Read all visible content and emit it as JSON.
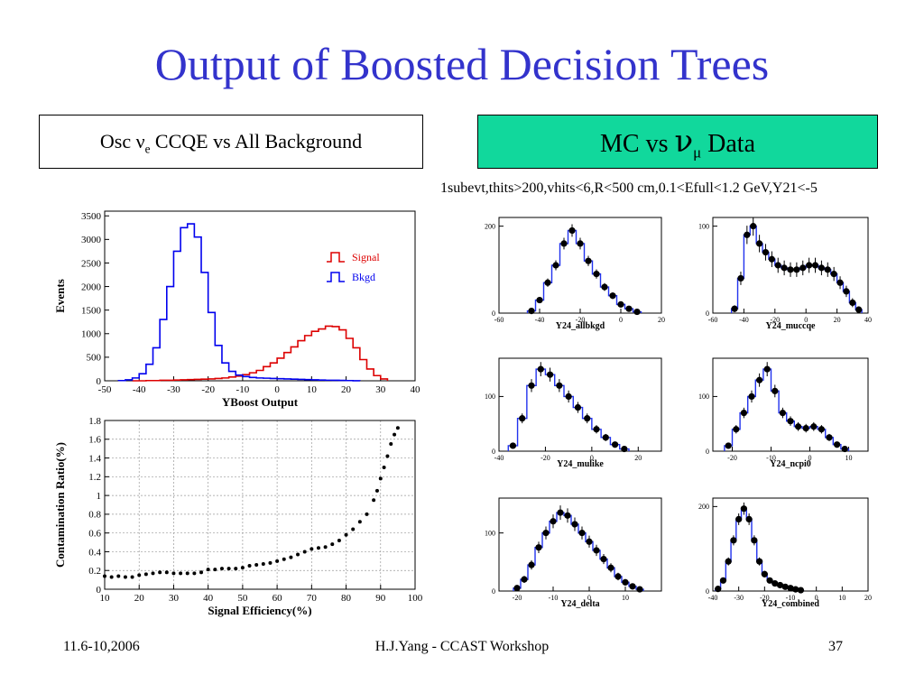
{
  "title": "Output of Boosted Decision Trees",
  "left_box": {
    "prefix": "Osc ν",
    "sub": "e",
    "suffix": " CCQE vs All Background"
  },
  "right_box": {
    "prefix": "MC vs ",
    "nu": "ν",
    "sub": "μ",
    "suffix": " Data",
    "color": "#11d89c"
  },
  "cuts_text": "1subevt,thits>200,vhits<6,R<500 cm,0.1<Efull<1.2 GeV,Y21<-5",
  "footer": {
    "date": "11.6-10,2006",
    "center": "H.J.Yang - CCAST Workshop",
    "page": "37"
  },
  "colors": {
    "title": "#3333cc",
    "signal": "#dd0000",
    "bkgd": "#0000ee",
    "mc": "#2233ee",
    "data": "#000000"
  },
  "chart_data": [
    {
      "type": "line",
      "title": "",
      "xlabel": "YBoost Output",
      "ylabel": "Events",
      "xlim": [
        -50,
        40
      ],
      "ylim": [
        0,
        3600
      ],
      "x_ticks": [
        -50,
        -40,
        -30,
        -20,
        -10,
        0,
        10,
        20,
        30,
        40
      ],
      "y_ticks": [
        0,
        500,
        1000,
        1500,
        2000,
        2500,
        3000,
        3500
      ],
      "legend": "top-right",
      "series": [
        {
          "name": "Signal",
          "x": [
            -41,
            -39,
            -37,
            -35,
            -33,
            -31,
            -29,
            -27,
            -25,
            -23,
            -21,
            -19,
            -17,
            -15,
            -13,
            -11,
            -9,
            -7,
            -5,
            -3,
            -1,
            1,
            3,
            5,
            7,
            9,
            11,
            13,
            15,
            17,
            19,
            21,
            23,
            25,
            27,
            29,
            31
          ],
          "values": [
            0,
            0,
            5,
            5,
            10,
            10,
            15,
            20,
            25,
            30,
            35,
            40,
            50,
            60,
            80,
            100,
            130,
            170,
            220,
            300,
            380,
            480,
            600,
            720,
            850,
            960,
            1050,
            1100,
            1160,
            1150,
            1080,
            900,
            700,
            450,
            250,
            110,
            40
          ]
        },
        {
          "name": "Bkgd",
          "x": [
            -45,
            -43,
            -41,
            -39,
            -37,
            -35,
            -33,
            -31,
            -29,
            -27,
            -25,
            -23,
            -21,
            -19,
            -17,
            -15,
            -13,
            -11,
            -9,
            -7,
            -5,
            -3,
            -1,
            1,
            3,
            5,
            7,
            9,
            11,
            13,
            15,
            17,
            19,
            21,
            23
          ],
          "values": [
            5,
            20,
            60,
            150,
            350,
            700,
            1300,
            2000,
            2750,
            3250,
            3330,
            3050,
            2300,
            1450,
            750,
            380,
            200,
            120,
            90,
            70,
            60,
            55,
            50,
            45,
            40,
            35,
            30,
            25,
            20,
            15,
            12,
            10,
            8,
            5,
            2
          ]
        }
      ]
    },
    {
      "type": "scatter",
      "title": "",
      "xlabel": "Signal Efficiency(%)",
      "ylabel": "Contamination Ratio(%)",
      "xlim": [
        10,
        100
      ],
      "ylim": [
        0,
        1.8
      ],
      "x_ticks": [
        10,
        20,
        30,
        40,
        50,
        60,
        70,
        80,
        90,
        100
      ],
      "y_ticks": [
        0,
        0.2,
        0.4,
        0.6,
        0.8,
        1,
        1.2,
        1.4,
        1.6,
        1.8
      ],
      "grid": true,
      "series": [
        {
          "name": "",
          "x": [
            10,
            12,
            14,
            16,
            18,
            20,
            22,
            24,
            26,
            28,
            30,
            32,
            34,
            36,
            38,
            40,
            42,
            44,
            46,
            48,
            50,
            52,
            54,
            56,
            58,
            60,
            62,
            64,
            66,
            68,
            70,
            72,
            74,
            76,
            78,
            80,
            82,
            84,
            86,
            88,
            89,
            90,
            91,
            92,
            93,
            94,
            95
          ],
          "values": [
            0.14,
            0.13,
            0.14,
            0.13,
            0.13,
            0.15,
            0.16,
            0.17,
            0.18,
            0.18,
            0.17,
            0.17,
            0.17,
            0.17,
            0.18,
            0.21,
            0.21,
            0.22,
            0.22,
            0.22,
            0.23,
            0.25,
            0.26,
            0.27,
            0.28,
            0.3,
            0.32,
            0.34,
            0.37,
            0.4,
            0.43,
            0.44,
            0.45,
            0.48,
            0.52,
            0.58,
            0.64,
            0.72,
            0.8,
            0.95,
            1.05,
            1.18,
            1.3,
            1.42,
            1.55,
            1.65,
            1.72
          ]
        }
      ]
    },
    {
      "type": "scatter",
      "xlabel": "Y24_allbkgd",
      "xlim": [
        -60,
        20
      ],
      "ylim": [
        0,
        220
      ],
      "x_ticks": [
        -60,
        -40,
        -20,
        0,
        20
      ],
      "y_ticks": [
        0,
        200
      ],
      "series": [
        {
          "name": "",
          "x": [
            -44,
            -40,
            -36,
            -32,
            -28,
            -24,
            -20,
            -16,
            -12,
            -8,
            -4,
            0,
            4,
            8
          ],
          "values": [
            5,
            30,
            70,
            110,
            160,
            190,
            160,
            120,
            90,
            60,
            40,
            20,
            10,
            3
          ]
        }
      ]
    },
    {
      "type": "scatter",
      "xlabel": "Y24_muccqe",
      "xlim": [
        -60,
        40
      ],
      "ylim": [
        0,
        110
      ],
      "x_ticks": [
        -60,
        -40,
        -20,
        0,
        20,
        40
      ],
      "y_ticks": [
        0,
        100
      ],
      "series": [
        {
          "name": "",
          "x": [
            -46,
            -42,
            -38,
            -34,
            -30,
            -26,
            -22,
            -18,
            -14,
            -10,
            -6,
            -2,
            2,
            6,
            10,
            14,
            18,
            22,
            26,
            30,
            34
          ],
          "values": [
            5,
            40,
            90,
            100,
            80,
            70,
            62,
            55,
            52,
            50,
            50,
            52,
            55,
            55,
            52,
            50,
            45,
            35,
            25,
            12,
            4
          ]
        }
      ]
    },
    {
      "type": "scatter",
      "xlabel": "Y24_mulike",
      "xlim": [
        -40,
        30
      ],
      "ylim": [
        0,
        170
      ],
      "x_ticks": [
        -40,
        -20,
        0,
        20
      ],
      "y_ticks": [
        0,
        100
      ],
      "series": [
        {
          "name": "",
          "x": [
            -34,
            -30,
            -26,
            -22,
            -18,
            -14,
            -10,
            -6,
            -2,
            2,
            6,
            10,
            14
          ],
          "values": [
            10,
            60,
            120,
            150,
            140,
            120,
            100,
            80,
            60,
            40,
            25,
            12,
            4
          ]
        }
      ]
    },
    {
      "type": "scatter",
      "xlabel": "Y24_ncpi0",
      "xlim": [
        -25,
        15
      ],
      "ylim": [
        0,
        170
      ],
      "x_ticks": [
        -20,
        -10,
        0,
        10
      ],
      "y_ticks": [
        0,
        100
      ],
      "series": [
        {
          "name": "",
          "x": [
            -21,
            -19,
            -17,
            -15,
            -13,
            -11,
            -9,
            -7,
            -5,
            -3,
            -1,
            1,
            3,
            5,
            7,
            9
          ],
          "values": [
            10,
            40,
            70,
            100,
            130,
            150,
            110,
            70,
            55,
            45,
            42,
            45,
            40,
            25,
            12,
            4
          ]
        }
      ]
    },
    {
      "type": "scatter",
      "xlabel": "Y24_delta",
      "xlim": [
        -25,
        20
      ],
      "ylim": [
        0,
        160
      ],
      "x_ticks": [
        -20,
        -10,
        0,
        10
      ],
      "y_ticks": [
        0,
        100
      ],
      "series": [
        {
          "name": "",
          "x": [
            -20,
            -18,
            -16,
            -14,
            -12,
            -10,
            -8,
            -6,
            -4,
            -2,
            0,
            2,
            4,
            6,
            8,
            10,
            12,
            14
          ],
          "values": [
            5,
            20,
            45,
            75,
            100,
            120,
            135,
            130,
            115,
            100,
            85,
            70,
            55,
            40,
            25,
            15,
            8,
            3
          ]
        }
      ]
    },
    {
      "type": "scatter",
      "xlabel": "Y24_combined",
      "xlim": [
        -40,
        20
      ],
      "ylim": [
        0,
        220
      ],
      "x_ticks": [
        -40,
        -30,
        -20,
        -10,
        0,
        10,
        20
      ],
      "y_ticks": [
        0,
        200
      ],
      "series": [
        {
          "name": "",
          "x": [
            -38,
            -36,
            -34,
            -32,
            -30,
            -28,
            -26,
            -24,
            -22,
            -20,
            -18,
            -16,
            -14,
            -12,
            -10,
            -8,
            -6
          ],
          "values": [
            5,
            25,
            70,
            120,
            170,
            195,
            170,
            120,
            70,
            40,
            25,
            18,
            14,
            10,
            7,
            4,
            2
          ]
        }
      ]
    }
  ]
}
